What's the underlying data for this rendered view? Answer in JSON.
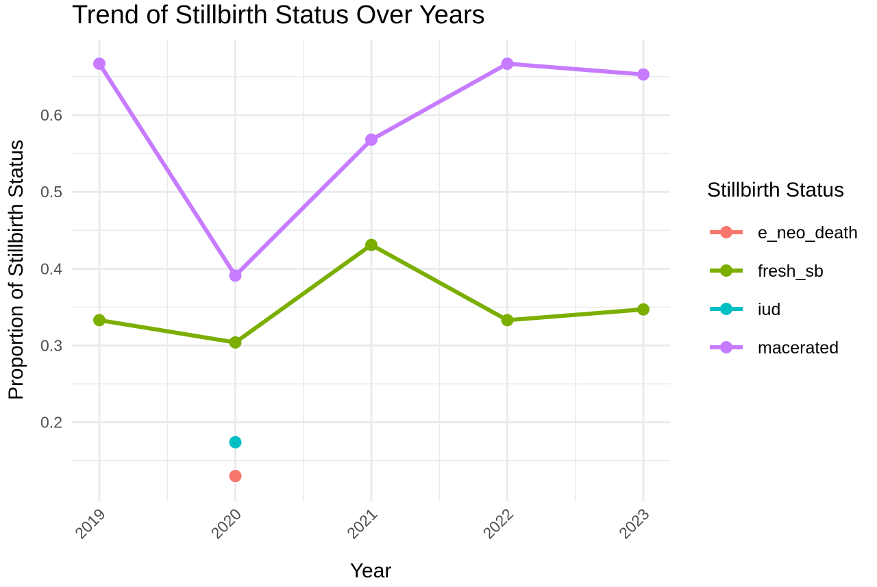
{
  "chart_data": {
    "type": "line",
    "title": "Trend of Stillbirth Status Over Years",
    "xlabel": "Year",
    "ylabel": "Proportion of Stillbirth Status",
    "categories": [
      "2019",
      "2020",
      "2021",
      "2022",
      "2023"
    ],
    "yticks": [
      0.2,
      0.3,
      0.4,
      0.5,
      0.6
    ],
    "ytick_labels": [
      "0.2",
      "0.3",
      "0.4",
      "0.5",
      "0.6"
    ],
    "ylim": [
      0.115,
      0.69
    ],
    "grid": true,
    "legend_title": "Stillbirth Status",
    "legend_position": "right",
    "series": [
      {
        "name": "e_neo_death",
        "color": "#F8766D",
        "values": [
          null,
          0.13,
          null,
          null,
          null
        ]
      },
      {
        "name": "fresh_sb",
        "color": "#7CAE00",
        "values": [
          0.333,
          0.304,
          0.431,
          0.333,
          0.347
        ]
      },
      {
        "name": "iud",
        "color": "#00BFC4",
        "values": [
          null,
          0.174,
          null,
          null,
          null
        ]
      },
      {
        "name": "macerated",
        "color": "#C77CFF",
        "values": [
          0.667,
          0.391,
          0.568,
          0.667,
          0.653
        ]
      }
    ]
  }
}
